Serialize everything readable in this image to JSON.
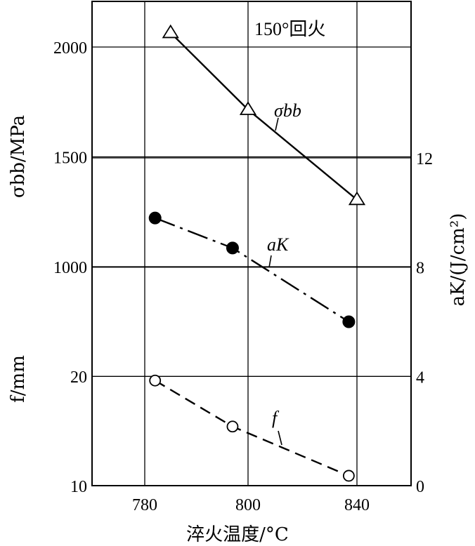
{
  "chart_data": {
    "type": "line",
    "annotation": "150°回火",
    "x_axis": {
      "label": "淬火温度/°C",
      "ticks": [
        780,
        800,
        840
      ],
      "tick_labels": [
        "780",
        "800",
        "840"
      ]
    },
    "left_axis_upper": {
      "label": "σbb/MPa",
      "range": [
        500,
        2200
      ],
      "ticks": [
        1000,
        1500,
        2000
      ],
      "tick_labels": [
        "1000",
        "1500",
        "2000"
      ]
    },
    "left_axis_lower": {
      "label": "f/mm",
      "range": [
        10,
        20
      ],
      "ticks": [
        10,
        20
      ],
      "tick_labels": [
        "10",
        "20"
      ]
    },
    "right_axis": {
      "label": "aK/(J/cm²)",
      "range": [
        0,
        16
      ],
      "ticks": [
        0,
        4,
        8,
        12
      ],
      "tick_labels": [
        "0",
        "4",
        "8",
        "12"
      ]
    },
    "series": [
      {
        "name": "σbb",
        "axis": "left_axis_upper",
        "marker": "open-triangle",
        "line_style": "solid",
        "points": [
          [
            785,
            2065
          ],
          [
            800,
            1715
          ],
          [
            840,
            1305
          ]
        ]
      },
      {
        "name": "aK",
        "axis": "right_axis",
        "marker": "filled-circle",
        "line_style": "dash-dot",
        "points": [
          [
            782,
            9.8
          ],
          [
            797,
            8.7
          ],
          [
            837,
            6.0
          ]
        ]
      },
      {
        "name": "f",
        "axis": "left_axis_lower",
        "marker": "open-circle",
        "line_style": "dashed",
        "points": [
          [
            782,
            19.6
          ],
          [
            797,
            15.4
          ],
          [
            837,
            10.9
          ]
        ]
      }
    ],
    "grid": true
  }
}
